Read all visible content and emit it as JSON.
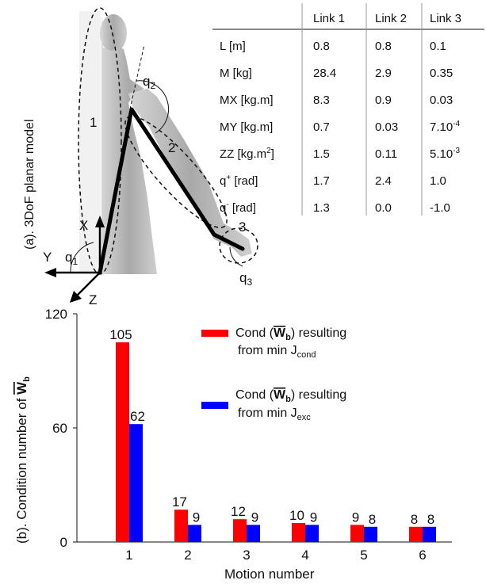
{
  "panel_a": {
    "caption": "(a).  3DoF planar model",
    "link_labels": [
      "1",
      "2",
      "3"
    ],
    "joint_labels": [
      "q",
      "q",
      "q"
    ],
    "joint_subscripts": [
      "2",
      "1",
      "3"
    ],
    "axis_labels": {
      "x": "X",
      "y": "Y",
      "z": "Z"
    }
  },
  "param_table": {
    "headers": [
      "",
      "Link 1",
      "Link 2",
      "Link 3"
    ],
    "rows": [
      {
        "name": "L [m]",
        "sup": "",
        "after": "",
        "values": [
          "0.8",
          "0.8",
          "0.1"
        ]
      },
      {
        "name": "M [kg]",
        "sup": "",
        "after": "",
        "values": [
          "28.4",
          "2.9",
          "0.35"
        ]
      },
      {
        "name": "MX [kg.m]",
        "sup": "",
        "after": "",
        "values": [
          "8.3",
          "0.9",
          "0.03"
        ]
      },
      {
        "name": "MY [kg.m]",
        "sup": "",
        "after": "",
        "values": [
          "0.7",
          "0.03",
          "7.10"
        ],
        "value_sup": "-4"
      },
      {
        "name": "ZZ [kg.m",
        "sup": "2",
        "after": "]",
        "values": [
          "1.5",
          "0.11",
          "5.10"
        ],
        "value_sup": "-3"
      },
      {
        "name": "q",
        "sup": "+",
        "after": " [rad]",
        "values": [
          "1.7",
          "2.4",
          "1.0"
        ]
      },
      {
        "name": "q",
        "sup": "-",
        "after": " [rad]",
        "values": [
          "1.3",
          "0.0",
          "-1.0"
        ]
      }
    ]
  },
  "chart_data": {
    "type": "bar",
    "ylabel_prefix": "(b). Condition number of ",
    "ylabel_symbol": "W",
    "ylabel_sub": "b",
    "xlabel": "Motion number",
    "ylim": [
      0,
      120
    ],
    "yticks": [
      "0",
      "60",
      "120"
    ],
    "categories": [
      "1",
      "2",
      "3",
      "4",
      "5",
      "6"
    ],
    "series": [
      {
        "color": "#ff0000",
        "values": [
          105,
          17,
          12,
          10,
          9,
          8
        ],
        "legend_main": "Cond (",
        "legend_sym": "W",
        "legend_sub": "b",
        "legend_rest": ") resulting",
        "legend_line2": "from min J",
        "legend_line2_sub": "cond"
      },
      {
        "color": "#0000ff",
        "values": [
          62,
          9,
          9,
          9,
          8,
          8
        ],
        "legend_main": "Cond (",
        "legend_sym": "W",
        "legend_sub": "b",
        "legend_rest": ") resulting",
        "legend_line2": "from min J",
        "legend_line2_sub": "exc"
      }
    ]
  }
}
